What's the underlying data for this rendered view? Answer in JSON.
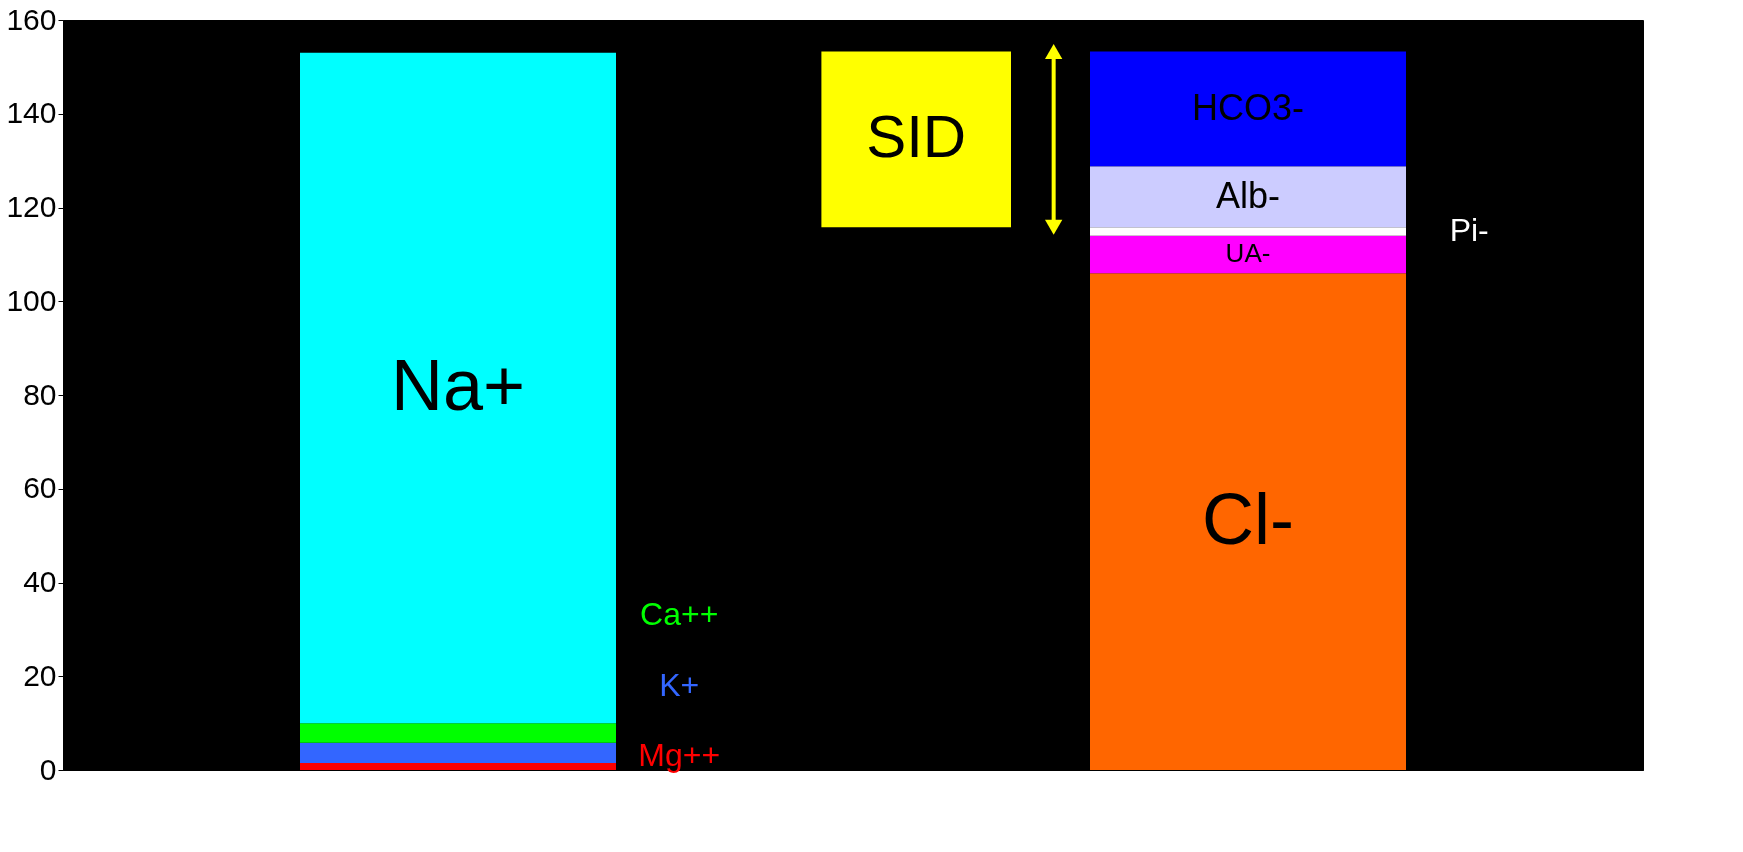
{
  "chart_data": {
    "type": "bar",
    "stacked": true,
    "categories": [
      null,
      null
    ],
    "ylim": [
      0,
      160
    ],
    "yticks": [
      0,
      20,
      40,
      60,
      80,
      100,
      120,
      140,
      160
    ],
    "grid": false,
    "legend": false,
    "tick_labels": "y",
    "series": [
      {
        "name": "Mg++",
        "color": "#ff0000",
        "values": [
          1.5,
          null
        ]
      },
      {
        "name": "K+",
        "color": "#3366ff",
        "values": [
          4.3,
          null
        ]
      },
      {
        "name": "Ca++",
        "color": "#00ff00",
        "values": [
          4.2,
          null
        ]
      },
      {
        "name": "Na+",
        "color": "#00ffff",
        "values": [
          143,
          null
        ]
      },
      {
        "name": "Cl-",
        "color": "#ff6600",
        "values": [
          null,
          106
        ]
      },
      {
        "name": "UA-",
        "color": "#ff00ff",
        "values": [
          null,
          8
        ]
      },
      {
        "name": "Pi-",
        "color": "#ffffff",
        "values": [
          null,
          1.8
        ]
      },
      {
        "name": "Alb-",
        "color": "#ccccff",
        "values": [
          null,
          13
        ]
      },
      {
        "name": "HCO3-",
        "color": "#0000ff",
        "values": [
          null,
          24.5
        ]
      }
    ],
    "annotations": [
      "SID"
    ]
  }
}
